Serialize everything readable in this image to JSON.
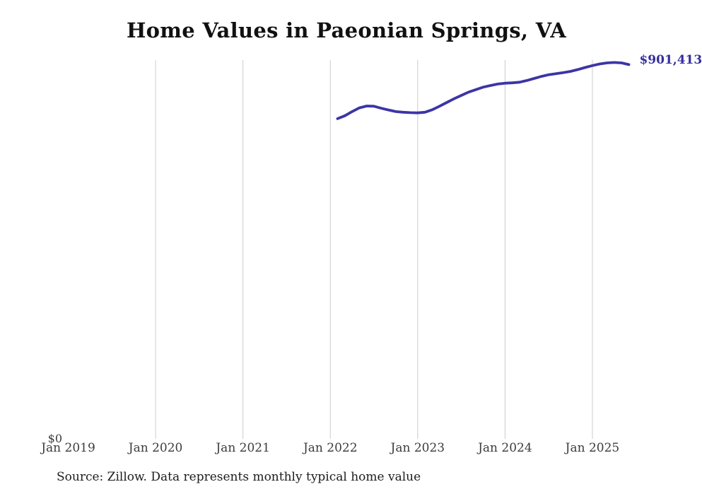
{
  "page": {
    "background": "#ffffff"
  },
  "chart": {
    "title": "Home Values in Paeonian Springs, VA",
    "source_note": "Source: Zillow. Data represents monthly typical home value",
    "y_zero_label": "$0",
    "end_label": "$901,413",
    "colors": {
      "line": "#3c35a5",
      "end_label": "#332e9e",
      "gridline": "#cccccc",
      "tick_label": "#3c3c3c",
      "title": "#111111",
      "source": "#1c1c1c"
    }
  },
  "chart_data": {
    "type": "line",
    "title": "Home Values in Paeonian Springs, VA",
    "xlabel": "",
    "ylabel": "",
    "x_tick_labels": [
      "Jan 2019",
      "Jan 2020",
      "Jan 2021",
      "Jan 2022",
      "Jan 2023",
      "Jan 2024",
      "Jan 2025"
    ],
    "y_tick_labels": [
      "$0"
    ],
    "ylim": [
      0,
      911000
    ],
    "grid": "vertical-year-gridlines-2020-to-2025",
    "legend_position": "none",
    "end_annotation": {
      "text": "$901,413",
      "value": 901413
    },
    "series": [
      {
        "name": "Monthly typical home value",
        "start_month": "2022-02",
        "end_month": "2025-06",
        "values": [
          771000,
          778000,
          788000,
          797000,
          801500,
          800900,
          796000,
          792000,
          788000,
          786500,
          785500,
          785000,
          786500,
          792500,
          801000,
          810000,
          819000,
          827000,
          835000,
          841000,
          847000,
          851000,
          854500,
          856500,
          857500,
          859000,
          863000,
          868000,
          873000,
          877000,
          879500,
          882000,
          885000,
          889500,
          894500,
          899000,
          903000,
          905500,
          906500,
          905500,
          901413
        ]
      }
    ]
  }
}
